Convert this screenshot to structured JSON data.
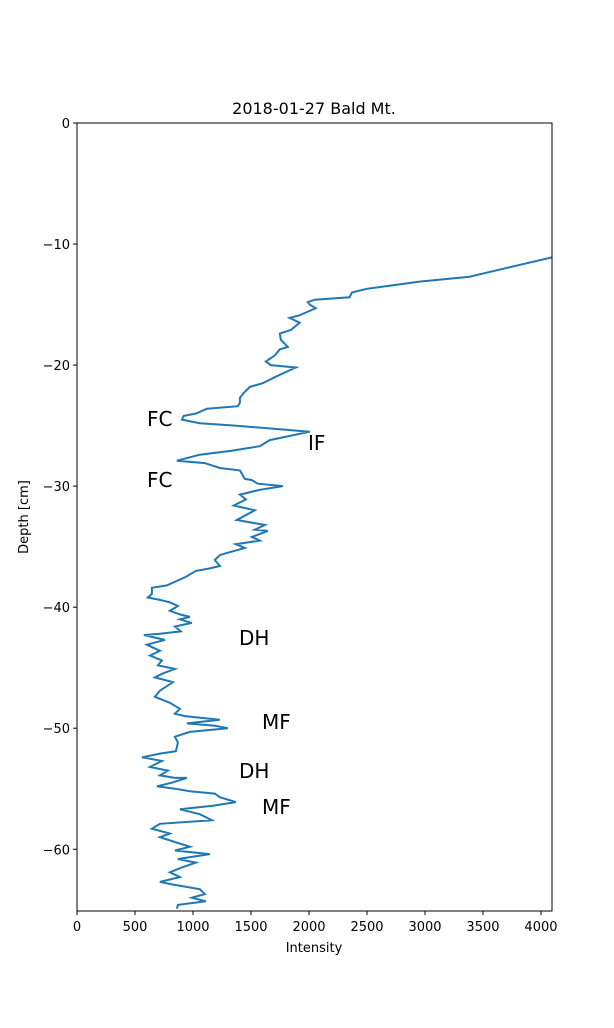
{
  "chart_data": {
    "type": "line",
    "title": "2018-01-27 Bald Mt.",
    "xlabel": "Intensity",
    "ylabel": "Depth [cm]",
    "xlim": [
      0,
      4095
    ],
    "ylim": [
      -65.1,
      0
    ],
    "xticks": [
      0,
      500,
      1000,
      1500,
      2000,
      2500,
      3000,
      3500,
      4000
    ],
    "yticks": [
      0,
      {
        "value": -10,
        "label": "−10"
      },
      {
        "value": -20,
        "label": "−20"
      },
      {
        "value": -30,
        "label": "−30"
      },
      {
        "value": -40,
        "label": "−40"
      },
      {
        "value": -50,
        "label": "−50"
      },
      {
        "value": -60,
        "label": "−60"
      }
    ],
    "annotations": [
      "FC",
      "IF",
      "FC",
      "DH",
      "MF",
      "DH",
      "MF"
    ],
    "series": [
      {
        "color": "#1f77b4",
        "x": [
          4095,
          3690,
          3385,
          2954,
          2498,
          2370,
          2350,
          2050,
          1990,
          2007,
          2058,
          1964,
          1912,
          1834,
          1920,
          1843,
          1748,
          1757,
          1817,
          1748,
          1705,
          1628,
          1671,
          1886,
          1817,
          1705,
          1602,
          1490,
          1438,
          1404,
          1404,
          1387,
          1120,
          1027,
          921,
          904,
          1059,
          1361,
          1748,
          2007,
          1662,
          1576,
          1318,
          1059,
          861,
          1102,
          1231,
          1404,
          1447,
          1507,
          1559,
          1774,
          1576,
          1404,
          1456,
          1352,
          1533,
          1378,
          1619,
          1533,
          1645,
          1507,
          1576,
          1369,
          1447,
          1301,
          1232,
          1188,
          1232,
          1145,
          1025,
          938,
          775,
          646,
          646,
          611,
          715,
          801,
          870,
          801,
          887,
          973,
          887,
          990,
          844,
          895,
          715,
          577,
          758,
          603,
          715,
          629,
          732,
          698,
          844,
          732,
          672,
          827,
          715,
          672,
          801,
          887,
          844,
          930,
          1231,
          947,
          1188,
          1300,
          973,
          844,
          870,
          853,
          715,
          560,
          732,
          629,
          784,
          715,
          844,
          947,
          818,
          689,
          844,
          973,
          1188,
          1231,
          1369,
          1171,
          887,
          1059,
          1163,
          715,
          646,
          801,
          715,
          844,
          973,
          844,
          1145,
          870,
          1025,
          904,
          801,
          887,
          715,
          818,
          1059,
          1102,
          990,
          1111,
          870,
          861
        ],
        "values": [
          -11.1,
          -12.0,
          -12.7,
          -13.1,
          -13.7,
          -14.0,
          -14.4,
          -14.6,
          -14.8,
          -15.0,
          -15.3,
          -15.7,
          -15.9,
          -16.1,
          -16.5,
          -17.1,
          -17.4,
          -17.9,
          -18.5,
          -18.7,
          -19.2,
          -19.7,
          -20.0,
          -20.2,
          -20.5,
          -21.0,
          -21.5,
          -21.8,
          -22.3,
          -22.7,
          -23.1,
          -23.4,
          -23.6,
          -24.0,
          -24.2,
          -24.5,
          -24.8,
          -25.0,
          -25.3,
          -25.5,
          -26.2,
          -26.7,
          -27.1,
          -27.4,
          -27.9,
          -28.1,
          -28.5,
          -28.7,
          -29.4,
          -29.5,
          -29.8,
          -30.0,
          -30.3,
          -30.7,
          -31.1,
          -31.6,
          -32.0,
          -32.8,
          -33.2,
          -33.6,
          -33.7,
          -34.2,
          -34.5,
          -34.8,
          -35.1,
          -35.5,
          -35.7,
          -36.1,
          -36.6,
          -36.8,
          -37.0,
          -37.5,
          -38.2,
          -38.4,
          -38.9,
          -39.2,
          -39.4,
          -39.6,
          -39.9,
          -40.3,
          -40.6,
          -40.8,
          -41.0,
          -41.3,
          -41.6,
          -42.0,
          -42.2,
          -42.3,
          -42.7,
          -43.1,
          -43.6,
          -44.0,
          -44.4,
          -44.8,
          -45.1,
          -45.5,
          -45.8,
          -46.2,
          -46.9,
          -47.4,
          -47.9,
          -48.4,
          -48.8,
          -49.0,
          -49.3,
          -49.6,
          -49.8,
          -50.0,
          -50.3,
          -50.7,
          -51.2,
          -51.9,
          -52.1,
          -52.4,
          -52.7,
          -53.2,
          -53.5,
          -53.9,
          -54.1,
          -54.1,
          -54.5,
          -54.8,
          -55.0,
          -55.2,
          -55.4,
          -55.7,
          -56.1,
          -56.4,
          -56.7,
          -57.1,
          -57.6,
          -57.9,
          -58.3,
          -58.7,
          -59.0,
          -59.4,
          -59.8,
          -60.1,
          -60.4,
          -60.8,
          -61.1,
          -61.5,
          -61.9,
          -62.3,
          -62.7,
          -62.9,
          -63.3,
          -63.7,
          -64.0,
          -64.3,
          -64.6,
          -64.9
        ]
      }
    ]
  }
}
